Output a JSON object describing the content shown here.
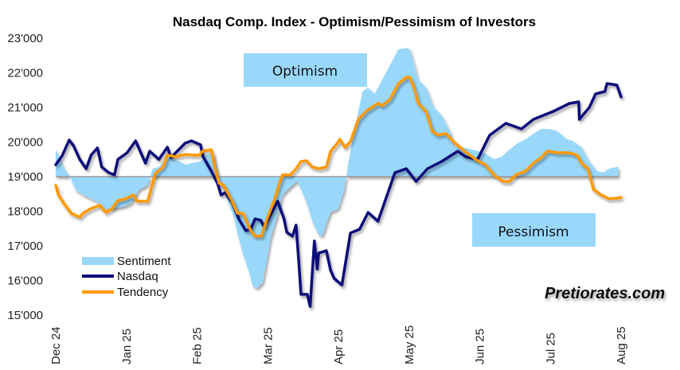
{
  "chart_data": {
    "type": "line",
    "title": "Nasdaq Comp. Index - Optimism/Pessimism of Investors",
    "xlabel": "",
    "ylabel": "",
    "ylim": [
      15000,
      23000
    ],
    "yticks": [
      15000,
      16000,
      17000,
      18000,
      19000,
      20000,
      21000,
      22000,
      23000
    ],
    "ytick_labels": [
      "15'000",
      "16'000",
      "17'000",
      "18'000",
      "19'000",
      "20'000",
      "21'000",
      "22'000",
      "23'000"
    ],
    "x_unit": "months since Dec 2024",
    "xlim": [
      0,
      8
    ],
    "xticks": [
      0,
      1,
      2,
      3,
      4,
      5,
      6,
      7,
      8
    ],
    "xtick_labels": [
      "Dec 24",
      "Jan 25",
      "Feb 25",
      "Mar 25",
      "Apr 25",
      "May 25",
      "Jun 25",
      "Jul 25",
      "Aug 25"
    ],
    "sentiment_baseline": 19000,
    "grid": false,
    "legend_position": "bottom-left",
    "annotations": [
      "Optimism",
      "Pessimism"
    ],
    "watermark": "Pretiorates.com",
    "colors": {
      "sentiment": "#99d8fb",
      "nasdaq": "#0a0a7a",
      "tendency": "#ff9900"
    },
    "series": [
      {
        "name": "Sentiment",
        "kind": "area",
        "points": [
          [
            0,
            19800
          ],
          [
            0.11,
            19270
          ],
          [
            0.22,
            18930
          ],
          [
            0.28,
            18620
          ],
          [
            0.39,
            18470
          ],
          [
            0.5,
            18360
          ],
          [
            0.62,
            18240
          ],
          [
            0.71,
            18080
          ],
          [
            0.82,
            18080
          ],
          [
            0.96,
            18130
          ],
          [
            1.07,
            18240
          ],
          [
            1.18,
            18620
          ],
          [
            1.3,
            18750
          ],
          [
            1.37,
            19230
          ],
          [
            1.46,
            19280
          ],
          [
            1.58,
            19550
          ],
          [
            1.75,
            19440
          ],
          [
            1.84,
            19345
          ],
          [
            1.92,
            19390
          ],
          [
            2.05,
            19440
          ],
          [
            2.12,
            19620
          ],
          [
            2.23,
            19670
          ],
          [
            2.31,
            18930
          ],
          [
            2.42,
            18360
          ],
          [
            2.51,
            17900
          ],
          [
            2.59,
            17210
          ],
          [
            2.65,
            16750
          ],
          [
            2.73,
            16290
          ],
          [
            2.79,
            15830
          ],
          [
            2.85,
            15780
          ],
          [
            2.93,
            15940
          ],
          [
            2.99,
            16630
          ],
          [
            3.04,
            17210
          ],
          [
            3.12,
            17780
          ],
          [
            3.21,
            18470
          ],
          [
            3.32,
            18700
          ],
          [
            3.41,
            18860
          ],
          [
            3.47,
            18660
          ],
          [
            3.55,
            18240
          ],
          [
            3.64,
            17660
          ],
          [
            3.72,
            17320
          ],
          [
            3.77,
            17280
          ],
          [
            3.89,
            17970
          ],
          [
            4.0,
            18080
          ],
          [
            4.08,
            18590
          ],
          [
            4.14,
            19390
          ],
          [
            4.23,
            20360
          ],
          [
            4.34,
            21460
          ],
          [
            4.42,
            21570
          ],
          [
            4.51,
            21390
          ],
          [
            4.62,
            21800
          ],
          [
            4.73,
            22220
          ],
          [
            4.85,
            22680
          ],
          [
            4.96,
            22720
          ],
          [
            5.01,
            22680
          ],
          [
            5.07,
            22260
          ],
          [
            5.13,
            21800
          ],
          [
            5.24,
            21570
          ],
          [
            5.35,
            21000
          ],
          [
            5.46,
            20770
          ],
          [
            5.58,
            20310
          ],
          [
            5.63,
            19850
          ],
          [
            5.75,
            19850
          ],
          [
            5.97,
            19740
          ],
          [
            6.08,
            19670
          ],
          [
            6.2,
            19500
          ],
          [
            6.31,
            19580
          ],
          [
            6.42,
            19780
          ],
          [
            6.54,
            19970
          ],
          [
            6.65,
            20080
          ],
          [
            6.76,
            20240
          ],
          [
            6.87,
            20380
          ],
          [
            6.99,
            20380
          ],
          [
            7.1,
            20310
          ],
          [
            7.23,
            20080
          ],
          [
            7.32,
            20030
          ],
          [
            7.44,
            19850
          ],
          [
            7.55,
            19440
          ],
          [
            7.66,
            19160
          ],
          [
            7.75,
            19120
          ],
          [
            7.83,
            19230
          ],
          [
            7.94,
            19280
          ],
          [
            7.96,
            19280
          ]
        ]
      },
      {
        "name": "Nasdaq",
        "kind": "line",
        "points": [
          [
            0,
            19345
          ],
          [
            0.09,
            19600
          ],
          [
            0.19,
            20060
          ],
          [
            0.25,
            19900
          ],
          [
            0.34,
            19500
          ],
          [
            0.43,
            19230
          ],
          [
            0.5,
            19620
          ],
          [
            0.59,
            19830
          ],
          [
            0.65,
            19280
          ],
          [
            0.75,
            19115
          ],
          [
            0.83,
            19050
          ],
          [
            0.88,
            19500
          ],
          [
            1.01,
            19690
          ],
          [
            1.13,
            20035
          ],
          [
            1.27,
            19390
          ],
          [
            1.33,
            19735
          ],
          [
            1.46,
            19500
          ],
          [
            1.58,
            19850
          ],
          [
            1.63,
            19550
          ],
          [
            1.83,
            19965
          ],
          [
            1.92,
            20035
          ],
          [
            2.05,
            19920
          ],
          [
            2.08,
            19600
          ],
          [
            2.2,
            19160
          ],
          [
            2.29,
            18810
          ],
          [
            2.34,
            18470
          ],
          [
            2.4,
            18540
          ],
          [
            2.5,
            18240
          ],
          [
            2.59,
            17780
          ],
          [
            2.69,
            17440
          ],
          [
            2.76,
            17480
          ],
          [
            2.82,
            17780
          ],
          [
            2.9,
            17740
          ],
          [
            2.95,
            17550
          ],
          [
            3.04,
            17900
          ],
          [
            3.14,
            18290
          ],
          [
            3.23,
            17780
          ],
          [
            3.27,
            17390
          ],
          [
            3.35,
            17280
          ],
          [
            3.4,
            17600
          ],
          [
            3.44,
            16520
          ],
          [
            3.47,
            15600
          ],
          [
            3.56,
            15600
          ],
          [
            3.6,
            15250
          ],
          [
            3.66,
            17140
          ],
          [
            3.7,
            16330
          ],
          [
            3.72,
            16790
          ],
          [
            3.83,
            16860
          ],
          [
            3.89,
            16290
          ],
          [
            3.94,
            16060
          ],
          [
            4.05,
            15870
          ],
          [
            4.17,
            17370
          ],
          [
            4.3,
            17480
          ],
          [
            4.42,
            17966
          ],
          [
            4.56,
            17710
          ],
          [
            4.8,
            19115
          ],
          [
            4.96,
            19230
          ],
          [
            5.1,
            18860
          ],
          [
            5.26,
            19230
          ],
          [
            5.46,
            19437
          ],
          [
            5.69,
            19736
          ],
          [
            5.8,
            19575
          ],
          [
            5.97,
            19500
          ],
          [
            6.14,
            20196
          ],
          [
            6.37,
            20540
          ],
          [
            6.59,
            20380
          ],
          [
            6.76,
            20655
          ],
          [
            7.04,
            20885
          ],
          [
            7.27,
            21115
          ],
          [
            7.4,
            21160
          ],
          [
            7.41,
            20655
          ],
          [
            7.55,
            21000
          ],
          [
            7.64,
            21390
          ],
          [
            7.77,
            21460
          ],
          [
            7.8,
            21690
          ],
          [
            7.94,
            21645
          ],
          [
            8.0,
            21300
          ]
        ]
      },
      {
        "name": "Tendency",
        "kind": "line",
        "points": [
          [
            0,
            18750
          ],
          [
            0.04,
            18470
          ],
          [
            0.11,
            18240
          ],
          [
            0.22,
            17940
          ],
          [
            0.34,
            17830
          ],
          [
            0.39,
            17950
          ],
          [
            0.5,
            18080
          ],
          [
            0.62,
            18170
          ],
          [
            0.71,
            17970
          ],
          [
            0.79,
            18060
          ],
          [
            0.88,
            18310
          ],
          [
            0.99,
            18360
          ],
          [
            1.1,
            18470
          ],
          [
            1.15,
            18290
          ],
          [
            1.3,
            18290
          ],
          [
            1.41,
            19090
          ],
          [
            1.52,
            19280
          ],
          [
            1.58,
            19620
          ],
          [
            1.69,
            19580
          ],
          [
            1.83,
            19640
          ],
          [
            2.03,
            19620
          ],
          [
            2.08,
            19740
          ],
          [
            2.2,
            19780
          ],
          [
            2.25,
            19280
          ],
          [
            2.31,
            18810
          ],
          [
            2.37,
            18760
          ],
          [
            2.48,
            18360
          ],
          [
            2.57,
            17940
          ],
          [
            2.65,
            17940
          ],
          [
            2.76,
            17440
          ],
          [
            2.82,
            17280
          ],
          [
            2.91,
            17280
          ],
          [
            2.99,
            17780
          ],
          [
            3.1,
            18360
          ],
          [
            3.16,
            18770
          ],
          [
            3.21,
            19050
          ],
          [
            3.32,
            19050
          ],
          [
            3.4,
            19230
          ],
          [
            3.47,
            19440
          ],
          [
            3.55,
            19460
          ],
          [
            3.63,
            19280
          ],
          [
            3.72,
            19230
          ],
          [
            3.83,
            19280
          ],
          [
            3.89,
            19740
          ],
          [
            3.97,
            19920
          ],
          [
            4.02,
            20080
          ],
          [
            4.09,
            19850
          ],
          [
            4.17,
            20010
          ],
          [
            4.28,
            20650
          ],
          [
            4.39,
            20890
          ],
          [
            4.56,
            21120
          ],
          [
            4.62,
            21050
          ],
          [
            4.73,
            21230
          ],
          [
            4.85,
            21690
          ],
          [
            4.96,
            21870
          ],
          [
            5.01,
            21870
          ],
          [
            5.07,
            21570
          ],
          [
            5.13,
            21120
          ],
          [
            5.24,
            20890
          ],
          [
            5.33,
            20310
          ],
          [
            5.41,
            20200
          ],
          [
            5.52,
            20250
          ],
          [
            5.63,
            20010
          ],
          [
            5.75,
            19800
          ],
          [
            5.86,
            19620
          ],
          [
            5.97,
            19460
          ],
          [
            6.08,
            19345
          ],
          [
            6.2,
            19050
          ],
          [
            6.33,
            18860
          ],
          [
            6.42,
            18860
          ],
          [
            6.51,
            19050
          ],
          [
            6.65,
            19160
          ],
          [
            6.76,
            19390
          ],
          [
            6.87,
            19550
          ],
          [
            6.96,
            19740
          ],
          [
            7.1,
            19690
          ],
          [
            7.27,
            19690
          ],
          [
            7.38,
            19620
          ],
          [
            7.44,
            19390
          ],
          [
            7.53,
            19230
          ],
          [
            7.61,
            18630
          ],
          [
            7.72,
            18470
          ],
          [
            7.83,
            18360
          ],
          [
            7.94,
            18380
          ],
          [
            8.0,
            18400
          ]
        ]
      }
    ]
  }
}
